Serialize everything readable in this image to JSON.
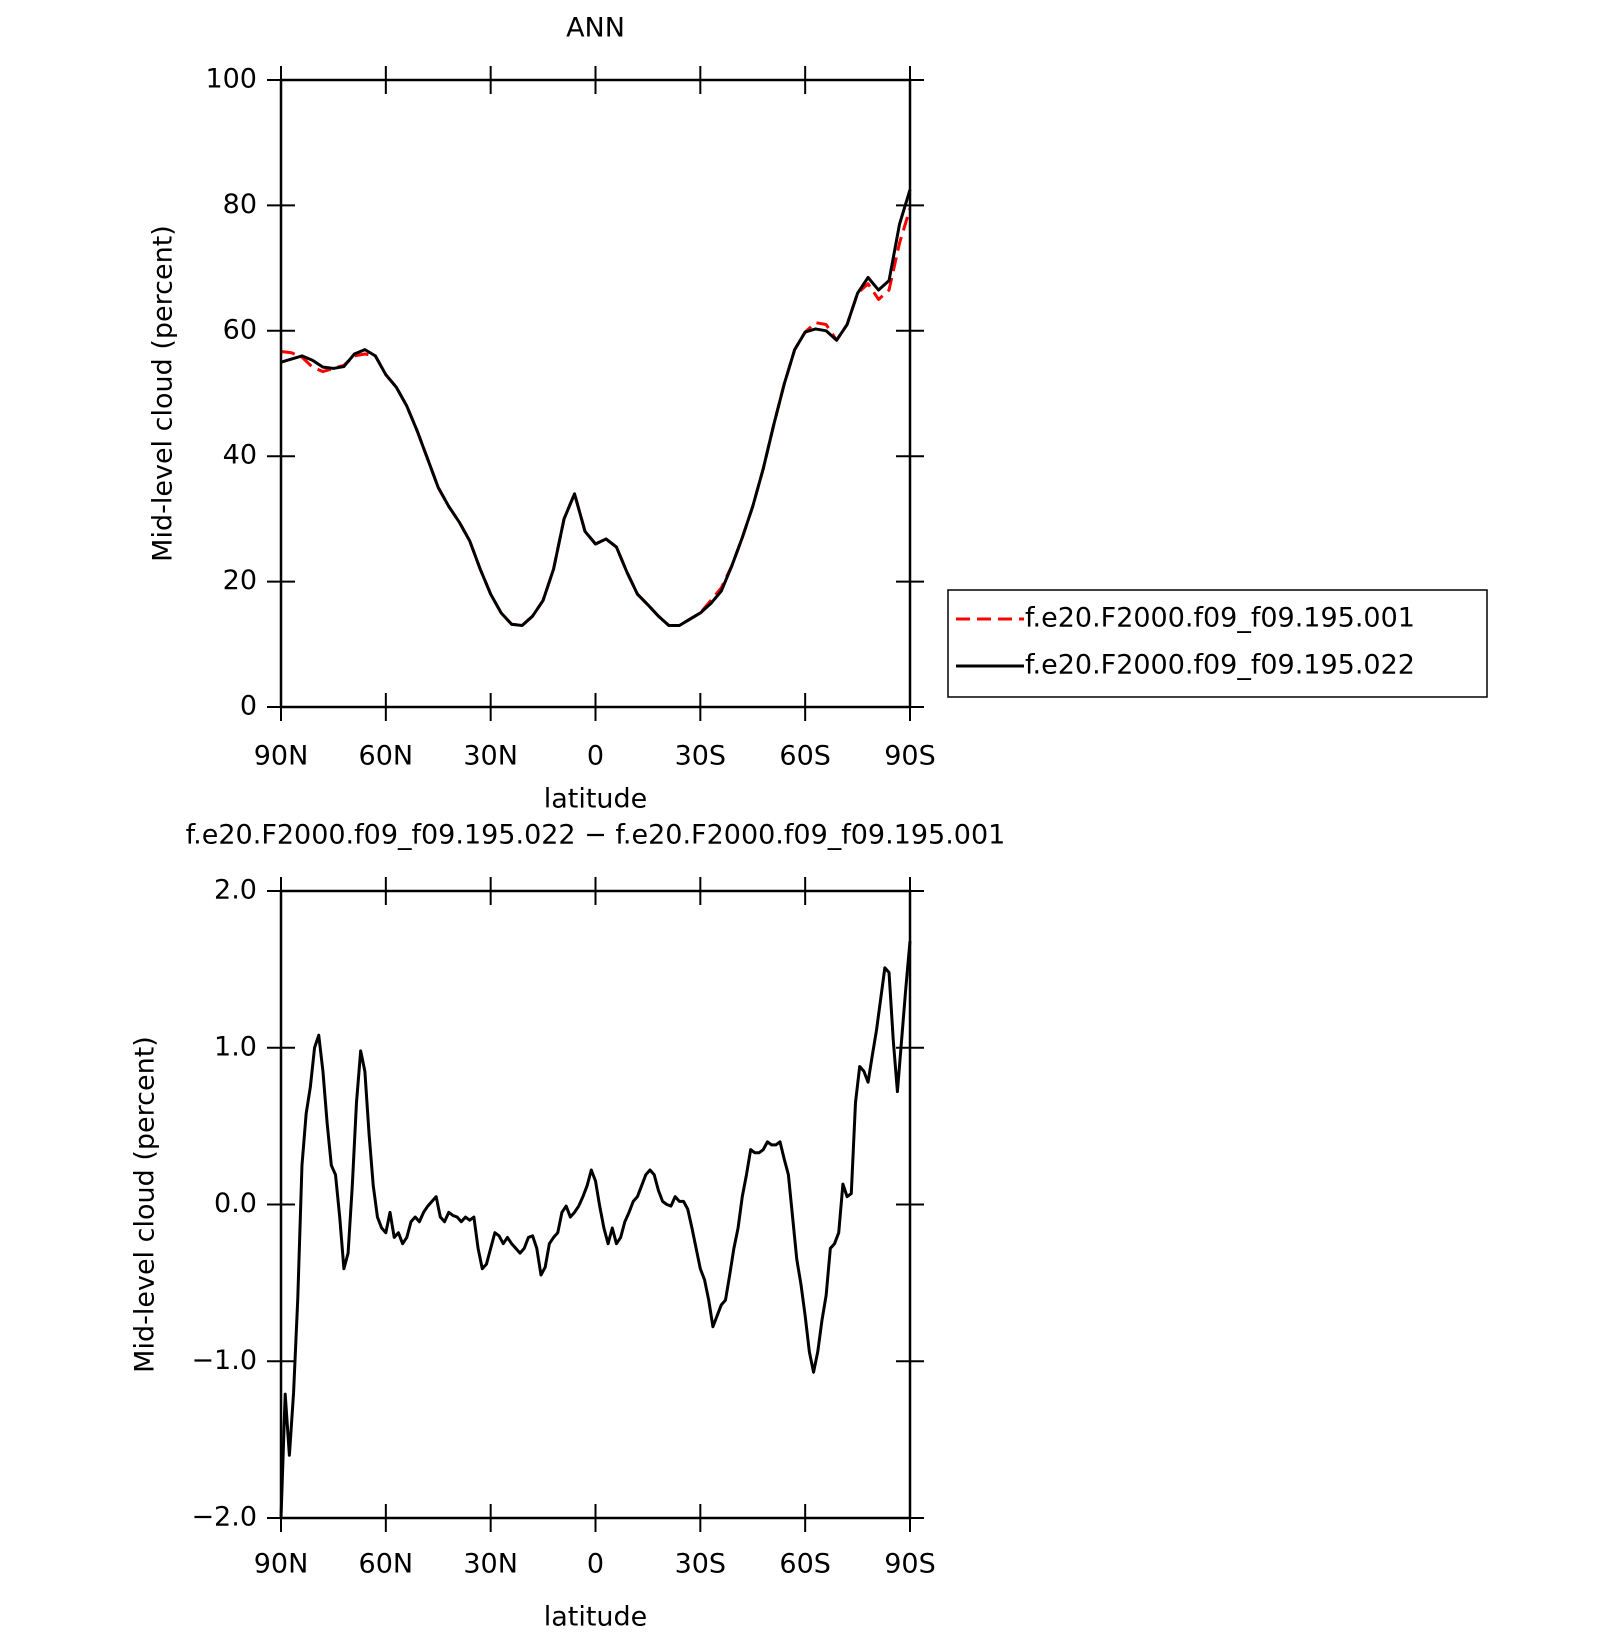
{
  "chart_data": [
    {
      "type": "line",
      "title": "ANN",
      "xlabel": "latitude",
      "ylabel": "Mid-level cloud (percent)",
      "x": [
        90,
        87,
        84,
        81,
        78,
        75,
        72,
        69,
        66,
        63,
        60,
        57,
        54,
        51,
        48,
        45,
        42,
        39,
        36,
        33,
        30,
        27,
        24,
        21,
        18,
        15,
        12,
        9,
        6,
        3,
        0,
        -3,
        -6,
        -9,
        -12,
        -15,
        -18,
        -21,
        -24,
        -27,
        -30,
        -33,
        -36,
        -39,
        -42,
        -45,
        -48,
        -51,
        -54,
        -57,
        -60,
        -63,
        -66,
        -69,
        -72,
        -75,
        -78,
        -81,
        -84,
        -87,
        -90
      ],
      "series": [
        {
          "name": "f.e20.F2000.f09_f09.195.001",
          "color": "#ff0000",
          "line_style": "dashed",
          "values": [
            56.7,
            56.5,
            55.8,
            54.2,
            53.5,
            54,
            54.5,
            56,
            56.3,
            56,
            53,
            51,
            48,
            44,
            39.5,
            35,
            32,
            29.5,
            26.5,
            22,
            18,
            15,
            13.2,
            13,
            14.5,
            17,
            22,
            30,
            34,
            28,
            26,
            26.8,
            25.5,
            21.5,
            18,
            16.3,
            14.5,
            13,
            13,
            14,
            15,
            17,
            19,
            22.5,
            27,
            32,
            38,
            45,
            51.5,
            57,
            59.8,
            61.3,
            61,
            58.5,
            61,
            66,
            67.5,
            65,
            66.5,
            74,
            79.5
          ]
        },
        {
          "name": "f.e20.F2000.f09_f09.195.022",
          "color": "#000000",
          "line_style": "solid",
          "values": [
            55,
            55.5,
            56,
            55.3,
            54.2,
            54,
            54.3,
            56.3,
            57,
            56,
            53,
            51,
            48,
            44,
            39.5,
            35,
            32,
            29.5,
            26.5,
            22,
            18,
            15,
            13.2,
            13,
            14.5,
            17,
            22,
            30,
            34,
            28,
            26,
            26.8,
            25.5,
            21.5,
            18,
            16.3,
            14.5,
            13,
            13,
            14,
            15,
            16.5,
            18.5,
            22.5,
            27,
            32,
            38,
            45,
            51.5,
            57,
            59.8,
            60.3,
            60,
            58.5,
            61,
            66,
            68.5,
            66.5,
            68,
            77,
            82.5
          ]
        }
      ],
      "xlim": [
        90,
        -90
      ],
      "xticks": [
        {
          "value": 90,
          "label": "90N"
        },
        {
          "value": 60,
          "label": "60N"
        },
        {
          "value": 30,
          "label": "30N"
        },
        0,
        {
          "value": -30,
          "label": "30S"
        },
        {
          "value": -60,
          "label": "60S"
        },
        {
          "value": -90,
          "label": "90S"
        }
      ],
      "ylim": [
        0,
        100
      ],
      "yticks": [
        0,
        20,
        40,
        60,
        80,
        100
      ],
      "legend": "right"
    },
    {
      "type": "line",
      "title": "f.e20.F2000.f09_f09.195.022 − f.e20.F2000.f09_f09.195.001",
      "xlabel": "latitude",
      "ylabel": "Mid-level cloud (percent)",
      "x": [
        90,
        88.8,
        87.6,
        86.4,
        85.2,
        84,
        82.8,
        81.6,
        80.4,
        79.2,
        78,
        76.8,
        75.6,
        74.4,
        73.2,
        72,
        70.8,
        69.6,
        68.4,
        67.2,
        66,
        64.8,
        63.6,
        62.4,
        61.2,
        60,
        58.8,
        57.6,
        56.4,
        55.2,
        54,
        52.8,
        51.6,
        50.4,
        49.2,
        48,
        46.8,
        45.6,
        44.4,
        43.2,
        42,
        40.8,
        39.6,
        38.4,
        37.2,
        36,
        34.8,
        33.6,
        32.4,
        31.2,
        30,
        28.8,
        27.6,
        26.4,
        25.2,
        24,
        22.8,
        21.6,
        20.4,
        19.2,
        18,
        16.8,
        15.6,
        14.4,
        13.2,
        12,
        10.8,
        9.6,
        8.4,
        7.2,
        6,
        4.8,
        3.6,
        2.4,
        1.2,
        0,
        -1.2,
        -2.4,
        -3.6,
        -4.8,
        -6,
        -7.2,
        -8.4,
        -9.6,
        -10.8,
        -12,
        -13.2,
        -14.4,
        -15.6,
        -16.8,
        -18,
        -19.2,
        -20.4,
        -21.6,
        -22.8,
        -24,
        -25.2,
        -26.4,
        -27.6,
        -28.8,
        -30,
        -31.2,
        -32.4,
        -33.6,
        -34.8,
        -36,
        -37.2,
        -38.4,
        -39.6,
        -40.8,
        -42,
        -43.2,
        -44.4,
        -45.6,
        -46.8,
        -48,
        -49.2,
        -50.4,
        -51.6,
        -52.8,
        -54,
        -55.2,
        -56.4,
        -57.6,
        -58.8,
        -60,
        -61.2,
        -62.4,
        -63.6,
        -64.8,
        -66,
        -67.2,
        -68.4,
        -69.6,
        -70.8,
        -72,
        -73.2,
        -74.4,
        -75.6,
        -76.8,
        -78,
        -79.2,
        -80.4,
        -81.6,
        -82.8,
        -84,
        -85.2,
        -86.4,
        -87.6,
        -88.8,
        -90
      ],
      "values": [
        -2.0,
        -1.21,
        -1.6,
        -1.2,
        -0.6,
        0.25,
        0.58,
        0.75,
        1.0,
        1.08,
        0.85,
        0.52,
        0.25,
        0.19,
        -0.08,
        -0.41,
        -0.31,
        0.12,
        0.65,
        0.98,
        0.85,
        0.45,
        0.12,
        -0.08,
        -0.15,
        -0.18,
        -0.05,
        -0.21,
        -0.18,
        -0.25,
        -0.21,
        -0.11,
        -0.08,
        -0.11,
        -0.05,
        -0.01,
        0.02,
        0.05,
        -0.08,
        -0.11,
        -0.05,
        -0.07,
        -0.08,
        -0.11,
        -0.08,
        -0.1,
        -0.08,
        -0.28,
        -0.41,
        -0.38,
        -0.28,
        -0.18,
        -0.2,
        -0.25,
        -0.21,
        -0.25,
        -0.28,
        -0.31,
        -0.28,
        -0.21,
        -0.2,
        -0.28,
        -0.45,
        -0.4,
        -0.25,
        -0.21,
        -0.18,
        -0.05,
        -0.01,
        -0.08,
        -0.05,
        -0.01,
        0.05,
        0.12,
        0.22,
        0.15,
        -0.01,
        -0.15,
        -0.25,
        -0.15,
        -0.25,
        -0.21,
        -0.11,
        -0.05,
        0.02,
        0.05,
        0.12,
        0.19,
        0.22,
        0.19,
        0.09,
        0.02,
        0.0,
        -0.01,
        0.05,
        0.02,
        0.02,
        -0.03,
        -0.15,
        -0.28,
        -0.41,
        -0.48,
        -0.61,
        -0.78,
        -0.71,
        -0.64,
        -0.61,
        -0.45,
        -0.28,
        -0.15,
        0.05,
        0.19,
        0.35,
        0.33,
        0.33,
        0.35,
        0.4,
        0.38,
        0.38,
        0.4,
        0.29,
        0.19,
        -0.08,
        -0.35,
        -0.51,
        -0.71,
        -0.94,
        -1.07,
        -0.94,
        -0.74,
        -0.58,
        -0.28,
        -0.25,
        -0.18,
        0.13,
        0.05,
        0.07,
        0.65,
        0.88,
        0.85,
        0.78,
        0.95,
        1.11,
        1.31,
        1.51,
        1.48,
        1.05,
        0.72,
        1.05,
        1.38,
        1.68
      ],
      "color": "#000000",
      "xlim": [
        90,
        -90
      ],
      "xticks": [
        {
          "value": 90,
          "label": "90N"
        },
        {
          "value": 60,
          "label": "60N"
        },
        {
          "value": 30,
          "label": "30N"
        },
        0,
        {
          "value": -30,
          "label": "30S"
        },
        {
          "value": -60,
          "label": "60S"
        },
        {
          "value": -90,
          "label": "90S"
        }
      ],
      "ylim": [
        -2,
        2
      ],
      "yticks": [
        {
          "value": -2,
          "label": "−2.0"
        },
        {
          "value": -1,
          "label": "−1.0"
        },
        {
          "value": 0,
          "label": "0.0"
        },
        {
          "value": 1,
          "label": "1.0"
        },
        {
          "value": 2,
          "label": "2.0"
        }
      ]
    }
  ]
}
